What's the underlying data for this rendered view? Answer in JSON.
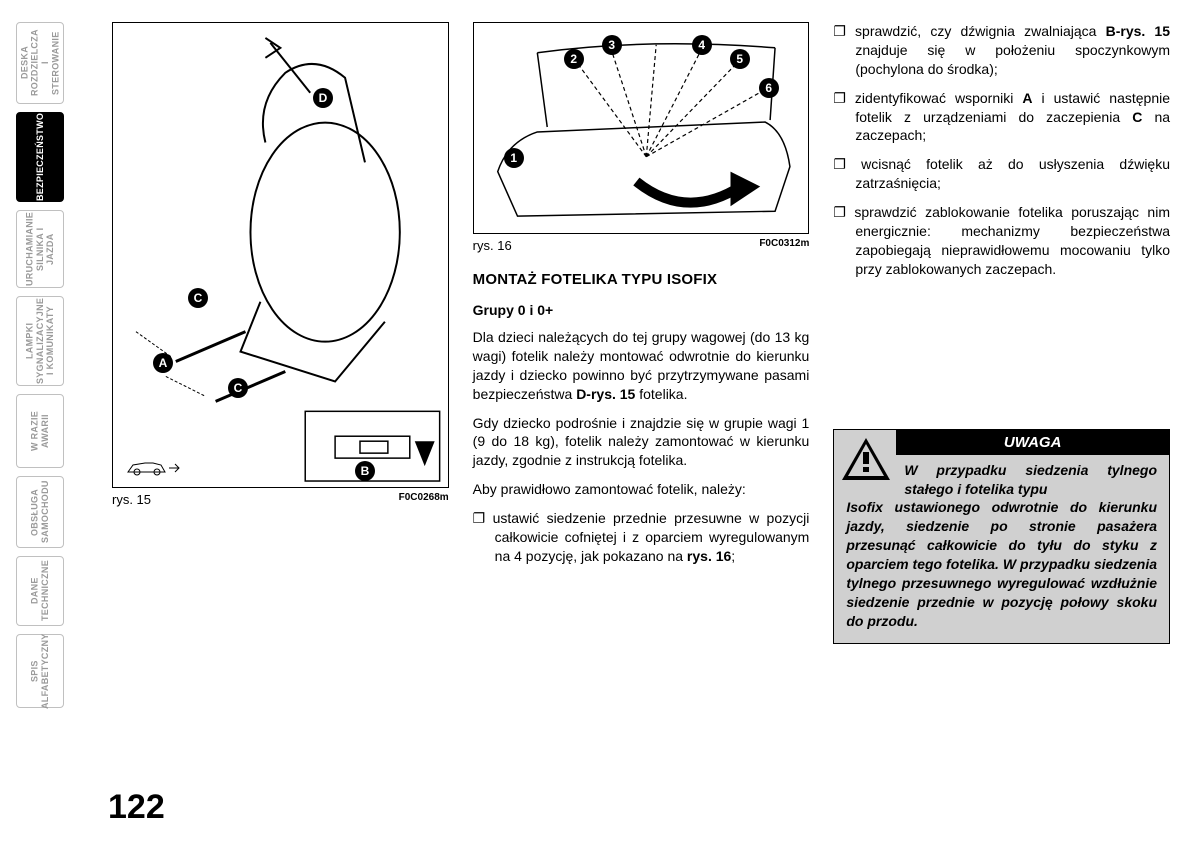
{
  "sidebar": {
    "tabs": [
      {
        "label": "DESKA\nROZDZIELCZA\nI STEROWANIE",
        "active": false
      },
      {
        "label": "BEZPIECZEŃSTWO",
        "active": true
      },
      {
        "label": "URUCHAMIANIE\nSILNIKA I JAZDA",
        "active": false
      },
      {
        "label": "LAMPKI\nSYGNALIZACYJNE\nI KOMUNIKATY",
        "active": false
      },
      {
        "label": "W RAZIE AWARII",
        "active": false
      },
      {
        "label": "OBSŁUGA\nSAMOCHODU",
        "active": false
      },
      {
        "label": "DANE\nTECHNICZNE",
        "active": false
      },
      {
        "label": "SPIS\nALFABETYCZNY",
        "active": false
      }
    ]
  },
  "pageNumber": "122",
  "fig15": {
    "caption": "rys. 15",
    "code": "F0C0268m",
    "callouts": [
      "A",
      "B",
      "C",
      "C",
      "D"
    ]
  },
  "fig16": {
    "caption": "rys. 16",
    "code": "F0C0312m",
    "callouts": [
      "1",
      "2",
      "3",
      "4",
      "5",
      "6"
    ]
  },
  "col2": {
    "heading": "MONTAŻ FOTELIKA TYPU ISOFIX",
    "subheading": "Grupy 0 i 0+",
    "p1_a": "Dla dzieci należących do tej grupy wagowej (do 13 kg wagi) fotelik należy montować odwrotnie do kierunku jazdy i dziecko powinno być przytrzymywane pasami bezpieczeństwa ",
    "p1_bold": "D-rys. 15",
    "p1_b": " fotelika.",
    "p2": "Gdy dziecko podrośnie i znajdzie się w grupie wagi 1 (9 do 18 kg), fotelik należy zamontować w kierunku jazdy, zgodnie z instrukcją fotelika.",
    "p3": "Aby prawidłowo zamontować fotelik, należy:",
    "li1_a": "ustawić siedzenie przednie przesuwne w pozycji całkowicie cofniętej i z oparciem wyregulowanym na 4 pozycję, jak pokazano na ",
    "li1_bold": "rys. 16",
    "li1_b": ";"
  },
  "col3": {
    "li2_a": "sprawdzić, czy dźwignia zwalniająca ",
    "li2_bold": "B-rys. 15",
    "li2_b": " znajduje się w położeniu spoczynkowym (pochylona do środka);",
    "li3_a": "zidentyfikować wsporniki ",
    "li3_boldA": "A",
    "li3_b": " i ustawić następnie fotelik z urządzeniami do zaczepienia ",
    "li3_boldC": "C",
    "li3_c": " na zaczepach;",
    "li4": "wcisnąć fotelik aż do usłyszenia dźwięku zatrzaśnięcia;",
    "li5": "sprawdzić zablokowanie fotelika poruszając nim energicznie: mechanizmy bezpieczeństwa zapobiegają nieprawidłowemu mocowaniu tylko przy zablokowanych zaczepach."
  },
  "warning": {
    "title": "UWAGA",
    "line1": "W przypadku siedzenia tylnego stałego i fotelika typu",
    "rest": "Isofix ustawionego odwrotnie do kierunku jazdy, siedzenie po stronie pasażera przesunąć całkowicie do tyłu do styku z oparciem tego fotelika. W przypadku siedzenia tylnego przesuwnego wyregulować wzdłużnie siedzenie przednie w pozycję połowy skoku do przodu."
  },
  "tabHeights": [
    82,
    90,
    78,
    90,
    74,
    72,
    70,
    74
  ]
}
